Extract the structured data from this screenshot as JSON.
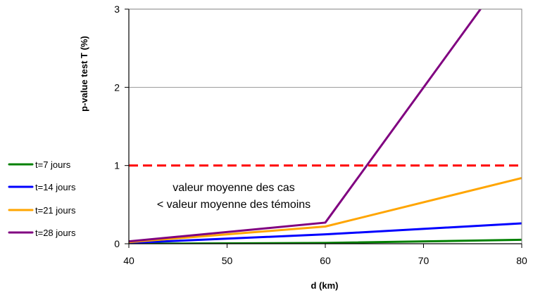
{
  "chart_data": {
    "type": "line",
    "xlabel": "d (km)",
    "ylabel": "p-value test T (%)",
    "xlim": [
      40,
      80
    ],
    "ylim": [
      0,
      3
    ],
    "x_ticks": [
      40,
      50,
      60,
      70,
      80
    ],
    "y_ticks": [
      0,
      1,
      2,
      3
    ],
    "grid": "horizontal",
    "legend": "left",
    "series": [
      {
        "name": "t=7 jours",
        "color": "#008000",
        "x": [
          40,
          60,
          80
        ],
        "y": [
          0.0,
          0.01,
          0.05
        ]
      },
      {
        "name": "t=14 jours",
        "color": "#0000FF",
        "x": [
          40,
          60,
          80
        ],
        "y": [
          0.01,
          0.12,
          0.26
        ]
      },
      {
        "name": "t=21 jours",
        "color": "#FFA500",
        "x": [
          40,
          60,
          80
        ],
        "y": [
          0.02,
          0.22,
          0.84
        ]
      },
      {
        "name": "t=28 jours",
        "color": "#800080",
        "x": [
          40,
          60,
          75.8
        ],
        "y": [
          0.03,
          0.27,
          3.0
        ]
      }
    ],
    "reference_line": {
      "y": 1,
      "color": "#FF0000",
      "style": "dashed"
    },
    "annotation": [
      "valeur moyenne des cas",
      "< valeur moyenne des témoins"
    ]
  }
}
